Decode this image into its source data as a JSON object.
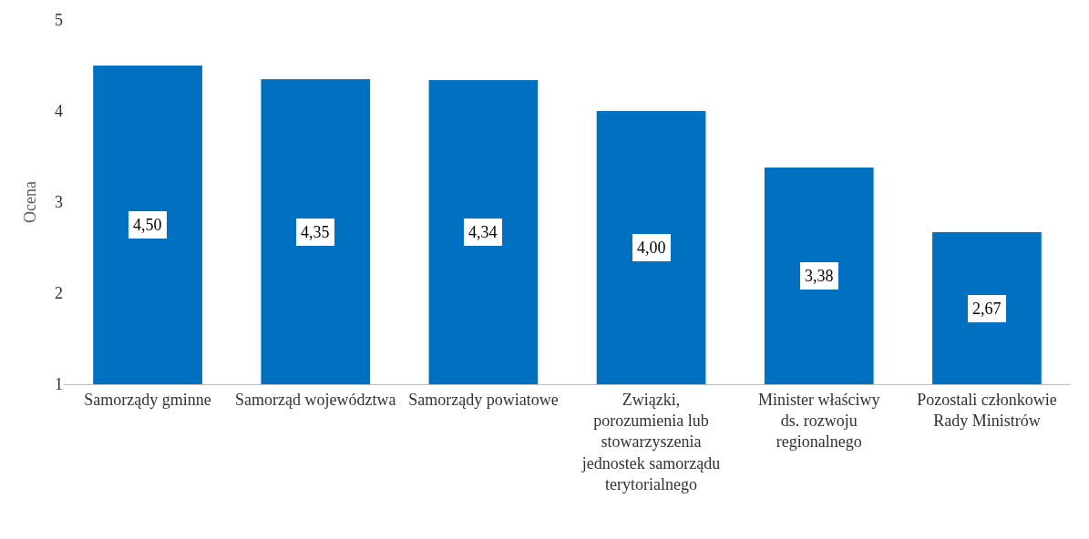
{
  "chart_data": {
    "type": "bar",
    "ylabel": "Ocena",
    "categories": [
      "Samorządy gminne",
      "Samorząd województwa",
      "Samorządy powiatowe",
      "Związki, porozumienia lub stowarzyszenia jednostek samorządu terytorialnego",
      "Minister właściwy ds. rozwoju regionalnego",
      "Pozostali członkowie Rady Ministrów"
    ],
    "values": [
      4.5,
      4.35,
      4.34,
      4.0,
      3.38,
      2.67
    ],
    "value_labels": [
      "4,50",
      "4,35",
      "4,34",
      "4,00",
      "3,38",
      "2,67"
    ],
    "color": "#0070c0",
    "ylim": [
      1,
      5
    ],
    "yticks": [
      1,
      2,
      3,
      4,
      5
    ],
    "grid": false
  }
}
